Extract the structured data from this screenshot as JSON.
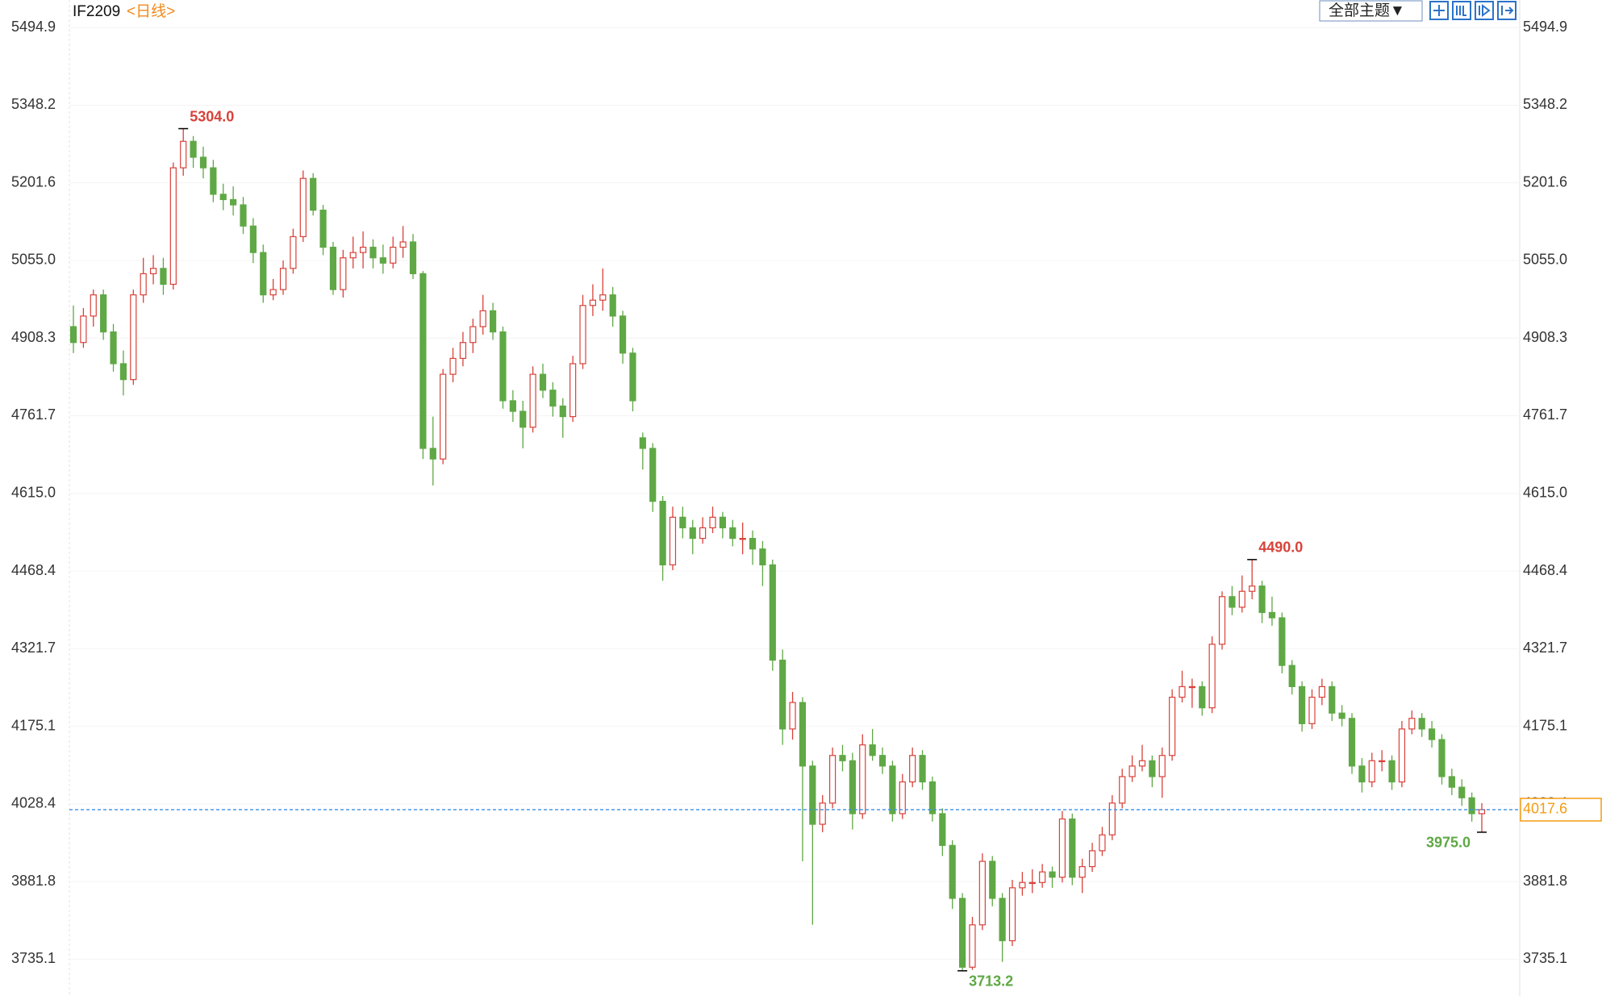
{
  "chart_data": {
    "type": "candlestick",
    "title": "IF2209",
    "subtitle": "<日线>",
    "up_color": "#d8423a",
    "down_color": "#5fa845",
    "last_color": "#f39c12",
    "ylim": [
      3665.6,
      5547.0
    ],
    "yticks": [
      5494.9,
      5348.2,
      5201.6,
      {
        "value": 5055.0,
        "label": "5055.0"
      },
      4908.3,
      4761.7,
      {
        "value": 4615.0,
        "label": "4615.0"
      },
      4468.4,
      4321.7,
      4175.1,
      4028.4,
      3881.8,
      3735.1
    ],
    "ohlc": [
      [
        4930,
        4970,
        4880,
        4900
      ],
      [
        4900,
        4965,
        4890,
        4950
      ],
      [
        4950,
        5000,
        4930,
        4990
      ],
      [
        4990,
        5000,
        4905,
        4920
      ],
      [
        4920,
        4935,
        4845,
        4860
      ],
      [
        4860,
        4885,
        4800,
        4830
      ],
      [
        4830,
        5000,
        4820,
        4990
      ],
      [
        4990,
        5060,
        4975,
        5030
      ],
      [
        5030,
        5065,
        5010,
        5040
      ],
      [
        5040,
        5060,
        4990,
        5010
      ],
      [
        5010,
        5240,
        5000,
        5230
      ],
      [
        5230,
        5304.0,
        5215,
        5280
      ],
      [
        5280,
        5290,
        5230,
        5250
      ],
      [
        5250,
        5270,
        5210,
        5230
      ],
      [
        5230,
        5245,
        5165,
        5180
      ],
      [
        5180,
        5200,
        5150,
        5170
      ],
      [
        5170,
        5195,
        5140,
        5160
      ],
      [
        5160,
        5175,
        5105,
        5120
      ],
      [
        5120,
        5135,
        5050,
        5070
      ],
      [
        5070,
        5085,
        4975,
        4990
      ],
      [
        4990,
        5020,
        4980,
        5000
      ],
      [
        5000,
        5055,
        4990,
        5040
      ],
      [
        5040,
        5115,
        5030,
        5100
      ],
      [
        5100,
        5225,
        5090,
        5210
      ],
      [
        5210,
        5220,
        5140,
        5150
      ],
      [
        5150,
        5160,
        5065,
        5080
      ],
      [
        5080,
        5090,
        4990,
        5000
      ],
      [
        5000,
        5075,
        4985,
        5060
      ],
      [
        5060,
        5100,
        5040,
        5070
      ],
      [
        5070,
        5110,
        5040,
        5080
      ],
      [
        5080,
        5095,
        5040,
        5060
      ],
      [
        5060,
        5085,
        5030,
        5050
      ],
      [
        5050,
        5100,
        5040,
        5080
      ],
      [
        5080,
        5120,
        5060,
        5090
      ],
      [
        5090,
        5105,
        5020,
        5030
      ],
      [
        5030,
        5035,
        4680,
        4700
      ],
      [
        4700,
        4760,
        4630,
        4680
      ],
      [
        4680,
        4850,
        4670,
        4840
      ],
      [
        4840,
        4890,
        4825,
        4870
      ],
      [
        4870,
        4920,
        4855,
        4900
      ],
      [
        4900,
        4945,
        4880,
        4930
      ],
      [
        4930,
        4990,
        4915,
        4960
      ],
      [
        4960,
        4975,
        4905,
        4920
      ],
      [
        4920,
        4930,
        4775,
        4790
      ],
      [
        4790,
        4810,
        4750,
        4770
      ],
      [
        4770,
        4790,
        4700,
        4740
      ],
      [
        4740,
        4855,
        4730,
        4840
      ],
      [
        4840,
        4860,
        4795,
        4810
      ],
      [
        4810,
        4825,
        4760,
        4780
      ],
      [
        4780,
        4795,
        4720,
        4760
      ],
      [
        4760,
        4875,
        4750,
        4860
      ],
      [
        4860,
        4990,
        4850,
        4970
      ],
      [
        4970,
        5010,
        4950,
        4980
      ],
      [
        4980,
        5040,
        4960,
        4990
      ],
      [
        4990,
        5005,
        4930,
        4950
      ],
      [
        4950,
        4960,
        4860,
        4880
      ],
      [
        4880,
        4890,
        4770,
        4790
      ],
      [
        4720,
        4730,
        4660,
        4700
      ],
      [
        4700,
        4710,
        4580,
        4600
      ],
      [
        4600,
        4610,
        4450,
        4480
      ],
      [
        4480,
        4590,
        4470,
        4570
      ],
      [
        4570,
        4590,
        4530,
        4550
      ],
      [
        4550,
        4565,
        4500,
        4530
      ],
      [
        4530,
        4570,
        4520,
        4550
      ],
      [
        4550,
        4590,
        4540,
        4570
      ],
      [
        4570,
        4580,
        4530,
        4550
      ],
      [
        4550,
        4565,
        4515,
        4530
      ],
      [
        4530,
        4560,
        4500,
        4530
      ],
      [
        4530,
        4545,
        4480,
        4510
      ],
      [
        4510,
        4525,
        4440,
        4480
      ],
      [
        4480,
        4490,
        4280,
        4300
      ],
      [
        4300,
        4320,
        4140,
        4170
      ],
      [
        4170,
        4240,
        4150,
        4220
      ],
      [
        4220,
        4230,
        3920,
        4100
      ],
      [
        4100,
        4110,
        3800,
        3990
      ],
      [
        3990,
        4045,
        3975,
        4030
      ],
      [
        4030,
        4135,
        4020,
        4120
      ],
      [
        4120,
        4140,
        4090,
        4110
      ],
      [
        4110,
        4125,
        3980,
        4010
      ],
      [
        4010,
        4160,
        4000,
        4140
      ],
      [
        4140,
        4170,
        4110,
        4120
      ],
      [
        4120,
        4135,
        4085,
        4100
      ],
      [
        4100,
        4110,
        3995,
        4010
      ],
      [
        4010,
        4085,
        4000,
        4070
      ],
      [
        4070,
        4135,
        4060,
        4120
      ],
      [
        4120,
        4130,
        4055,
        4070
      ],
      [
        4070,
        4080,
        3995,
        4010
      ],
      [
        4010,
        4020,
        3930,
        3950
      ],
      [
        3950,
        3960,
        3830,
        3850
      ],
      [
        3850,
        3860,
        3713.2,
        3720
      ],
      [
        3720,
        3815,
        3715,
        3800
      ],
      [
        3800,
        3935,
        3790,
        3920
      ],
      [
        3920,
        3930,
        3835,
        3850
      ],
      [
        3850,
        3860,
        3730,
        3770
      ],
      [
        3770,
        3885,
        3760,
        3870
      ],
      [
        3870,
        3900,
        3855,
        3880
      ],
      [
        3880,
        3905,
        3860,
        3880
      ],
      [
        3880,
        3915,
        3870,
        3900
      ],
      [
        3900,
        3910,
        3870,
        3890
      ],
      [
        3890,
        4015,
        3880,
        4000
      ],
      [
        4000,
        4010,
        3875,
        3890
      ],
      [
        3890,
        3925,
        3860,
        3910
      ],
      [
        3910,
        3955,
        3900,
        3940
      ],
      [
        3940,
        3985,
        3930,
        3970
      ],
      [
        3970,
        4045,
        3960,
        4030
      ],
      [
        4030,
        4095,
        4020,
        4080
      ],
      [
        4080,
        4120,
        4070,
        4100
      ],
      [
        4100,
        4140,
        4090,
        4110
      ],
      [
        4110,
        4120,
        4060,
        4080
      ],
      [
        4080,
        4135,
        4040,
        4120
      ],
      [
        4120,
        4245,
        4110,
        4230
      ],
      [
        4230,
        4280,
        4220,
        4250
      ],
      [
        4250,
        4265,
        4210,
        4250
      ],
      [
        4250,
        4260,
        4195,
        4210
      ],
      [
        4210,
        4345,
        4200,
        4330
      ],
      [
        4330,
        4430,
        4320,
        4420
      ],
      [
        4420,
        4440,
        4385,
        4400
      ],
      [
        4400,
        4460,
        4390,
        4430
      ],
      [
        4430,
        4490.0,
        4415,
        4440
      ],
      [
        4440,
        4450,
        4370,
        4390
      ],
      [
        4390,
        4420,
        4365,
        4380
      ],
      [
        4380,
        4390,
        4275,
        4290
      ],
      [
        4290,
        4300,
        4235,
        4250
      ],
      [
        4250,
        4260,
        4165,
        4180
      ],
      [
        4180,
        4245,
        4170,
        4230
      ],
      [
        4230,
        4265,
        4215,
        4250
      ],
      [
        4250,
        4260,
        4185,
        4200
      ],
      [
        4200,
        4215,
        4175,
        4190
      ],
      [
        4190,
        4200,
        4085,
        4100
      ],
      [
        4100,
        4115,
        4050,
        4070
      ],
      [
        4070,
        4125,
        4060,
        4110
      ],
      [
        4110,
        4130,
        4090,
        4110
      ],
      [
        4110,
        4120,
        4055,
        4070
      ],
      [
        4070,
        4185,
        4060,
        4170
      ],
      [
        4170,
        4205,
        4160,
        4190
      ],
      [
        4190,
        4200,
        4155,
        4170
      ],
      [
        4170,
        4185,
        4135,
        4150
      ],
      [
        4150,
        4160,
        4065,
        4080
      ],
      [
        4080,
        4095,
        4045,
        4060
      ],
      [
        4060,
        4075,
        4025,
        4040
      ],
      [
        4040,
        4050,
        3995,
        4010
      ],
      [
        4010,
        4030,
        3975.0,
        4017.6
      ]
    ],
    "value_labels": [
      null,
      null,
      null,
      null,
      null,
      null,
      null,
      null,
      null,
      null,
      null,
      [
        null,
        "5304.0",
        null,
        null
      ],
      null,
      null,
      null,
      null,
      null,
      null,
      null,
      null,
      null,
      null,
      null,
      null,
      null,
      null,
      null,
      null,
      null,
      null,
      null,
      null,
      null,
      null,
      null,
      null,
      null,
      null,
      null,
      null,
      null,
      null,
      null,
      null,
      null,
      null,
      null,
      null,
      null,
      null,
      null,
      null,
      null,
      null,
      null,
      null,
      null,
      null,
      null,
      null,
      null,
      null,
      null,
      null,
      null,
      null,
      null,
      null,
      null,
      null,
      null,
      null,
      null,
      null,
      null,
      null,
      null,
      null,
      null,
      null,
      null,
      null,
      null,
      null,
      null,
      null,
      null,
      null,
      null,
      [
        null,
        null,
        "3713.2",
        null
      ],
      null,
      null,
      null,
      null,
      null,
      null,
      null,
      null,
      null,
      null,
      null,
      null,
      null,
      null,
      null,
      null,
      null,
      null,
      null,
      null,
      null,
      null,
      null,
      null,
      null,
      null,
      null,
      null,
      [
        null,
        "4490.0",
        null,
        null
      ],
      null,
      null,
      null,
      null,
      null,
      null,
      null,
      null,
      null,
      null,
      null,
      null,
      null,
      null,
      null,
      null,
      null,
      null,
      null,
      null,
      null,
      null,
      [
        null,
        null,
        "3975.0",
        null
      ]
    ]
  },
  "toolbar": {
    "theme": "全部主题▼"
  }
}
